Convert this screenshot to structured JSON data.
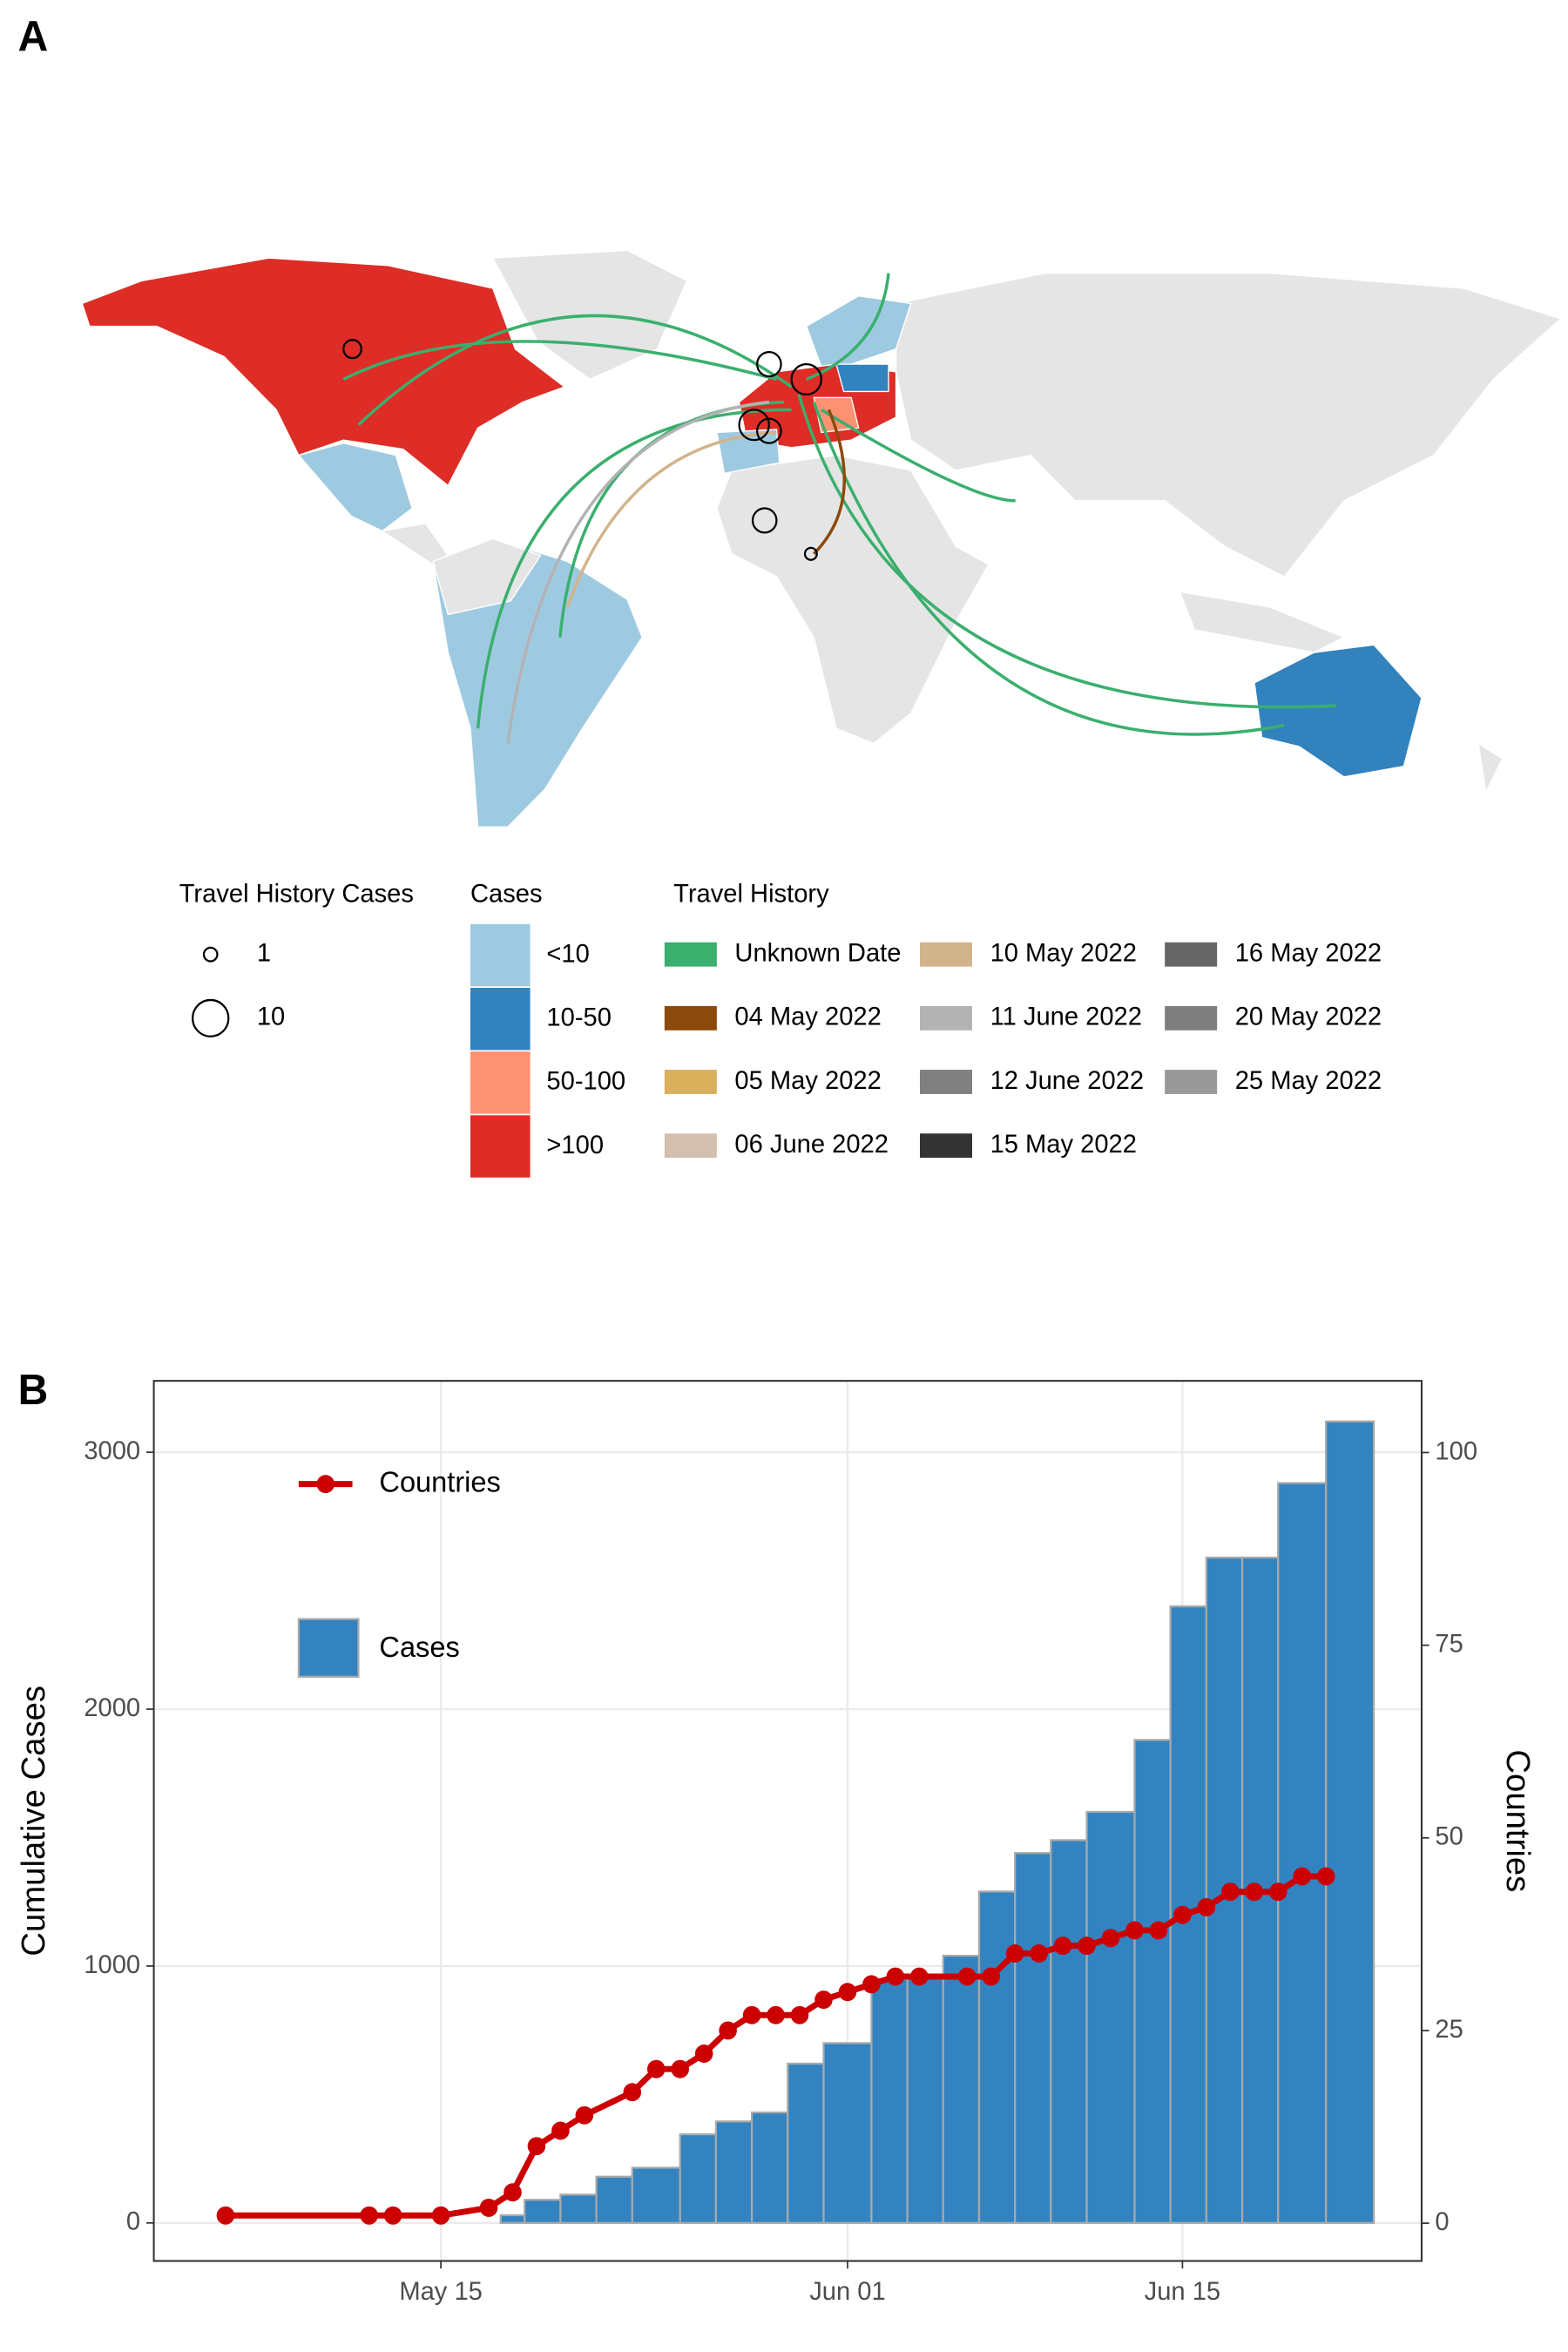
{
  "panel_a": {
    "label": "A",
    "size_legend": {
      "title": "Travel History Cases",
      "entries": [
        "1",
        "10"
      ]
    },
    "cases_legend": {
      "title": "Cases",
      "entries": [
        {
          "label": "<10",
          "color": "#9ecae1"
        },
        {
          "label": "10-50",
          "color": "#3182bd"
        },
        {
          "label": "50-100",
          "color": "#fc9272"
        },
        {
          "label": ">100",
          "color": "#de2d26"
        }
      ]
    },
    "travel_legend": {
      "title": "Travel History",
      "entries": [
        {
          "label": "Unknown Date",
          "color": "#3aaf6e"
        },
        {
          "label": "04 May 2022",
          "color": "#8b4a0c"
        },
        {
          "label": "05 May 2022",
          "color": "#d9b05c"
        },
        {
          "label": "06 June 2022",
          "color": "#d2bfae"
        },
        {
          "label": "10 May 2022",
          "color": "#d2b48c"
        },
        {
          "label": "11 June 2022",
          "color": "#b3b3b3"
        },
        {
          "label": "12 June 2022",
          "color": "#808080"
        },
        {
          "label": "15 May 2022",
          "color": "#333333"
        },
        {
          "label": "16 May 2022",
          "color": "#666666"
        },
        {
          "label": "20 May 2022",
          "color": "#7f7f7f"
        },
        {
          "label": "25 May 2022",
          "color": "#999999"
        }
      ]
    }
  },
  "chart_data": {
    "type": "bar",
    "panel_label": "B",
    "y_label": "Cumulative Cases",
    "y2_label": "Countries",
    "xlim": [
      "May 3",
      "Jun 25"
    ],
    "xticks": [
      "May 15",
      "Jun 01",
      "Jun 15"
    ],
    "ylim": [
      -148,
      3278
    ],
    "yticks": [
      0,
      1000,
      2000,
      3000
    ],
    "y2lim": [
      -4.9,
      109.3
    ],
    "y2ticks": [
      0,
      25,
      50,
      75,
      100
    ],
    "grid": true,
    "series": [
      {
        "name": "Cases",
        "type": "bar",
        "color": "#3383c0",
        "x": [
          "May 18",
          "May 19",
          "May 21",
          "May 22",
          "May 24",
          "May 26",
          "May 27",
          "May 29",
          "May 30",
          "Jun 01",
          "Jun 03",
          "Jun 04",
          "Jun 06",
          "Jun 07",
          "Jun 09",
          "Jun 10",
          "Jun 12",
          "Jun 14",
          "Jun 15",
          "Jun 17",
          "Jun 18",
          "Jun 20",
          "Jun 22"
        ],
        "values": [
          30,
          90,
          110,
          180,
          215,
          345,
          395,
          430,
          620,
          700,
          950,
          960,
          1040,
          1290,
          1440,
          1490,
          1600,
          1880,
          2400,
          2590,
          2590,
          2880,
          3120
        ]
      },
      {
        "name": "Countries",
        "type": "line",
        "axis": "y2",
        "color": "#cc0000",
        "x": [
          "May 06",
          "May 12",
          "May 13",
          "May 15",
          "May 17",
          "May 18",
          "May 19",
          "May 20",
          "May 21",
          "May 23",
          "May 24",
          "May 25",
          "May 26",
          "May 27",
          "May 28",
          "May 29",
          "May 30",
          "May 31",
          "Jun 01",
          "Jun 02",
          "Jun 03",
          "Jun 04",
          "Jun 06",
          "Jun 07",
          "Jun 08",
          "Jun 09",
          "Jun 10",
          "Jun 11",
          "Jun 12",
          "Jun 13",
          "Jun 14",
          "Jun 15",
          "Jun 16",
          "Jun 17",
          "Jun 18",
          "Jun 19",
          "Jun 20",
          "Jun 21"
        ],
        "values": [
          1,
          1,
          1,
          1,
          2,
          4,
          10,
          12,
          14,
          17,
          20,
          20,
          22,
          25,
          27,
          27,
          27,
          29,
          30,
          31,
          32,
          32,
          32,
          32,
          35,
          35,
          36,
          36,
          37,
          38,
          38,
          40,
          41,
          43,
          43,
          43,
          45,
          45
        ]
      }
    ]
  }
}
